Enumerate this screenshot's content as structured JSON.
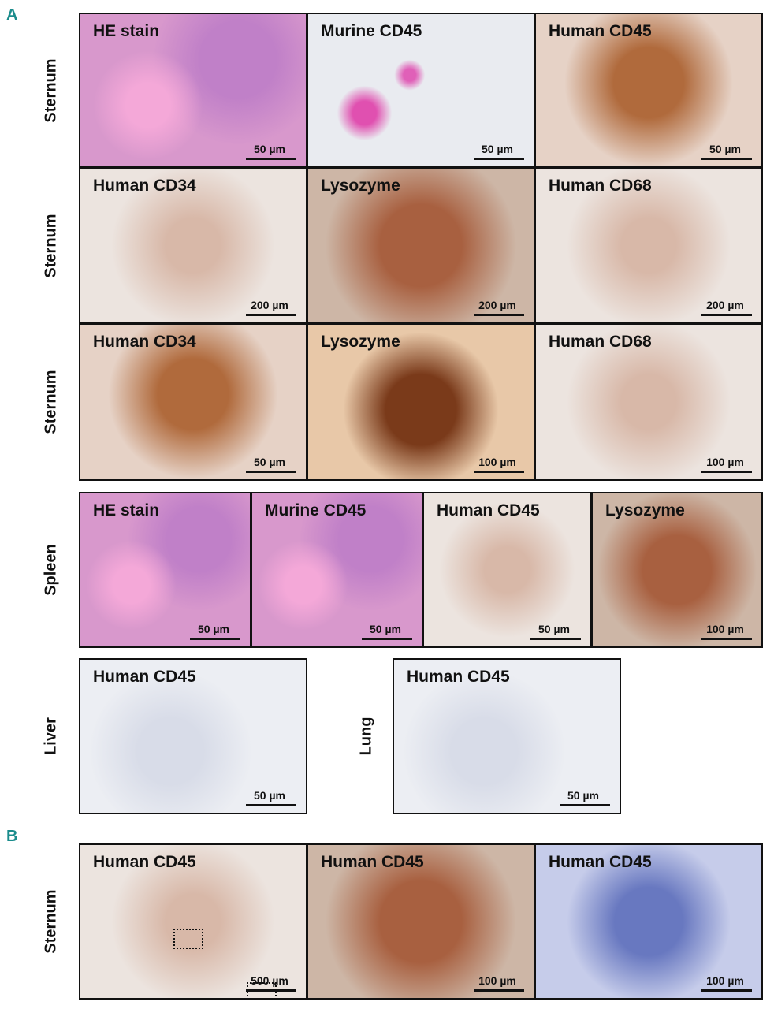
{
  "panel_a": {
    "label": "A",
    "rows": [
      {
        "label": "Sternum",
        "images": [
          {
            "title": "HE stain",
            "scale": "50 µm"
          },
          {
            "title": "Murine CD45",
            "scale": "50 µm"
          },
          {
            "title": "Human CD45",
            "scale": "50 µm"
          }
        ]
      },
      {
        "label": "Sternum",
        "images": [
          {
            "title": "Human CD34",
            "scale": "200 µm"
          },
          {
            "title": "Lysozyme",
            "scale": "200 µm"
          },
          {
            "title": "Human CD68",
            "scale": "200 µm"
          }
        ]
      },
      {
        "label": "Sternum",
        "images": [
          {
            "title": "Human CD34",
            "scale": "50 µm"
          },
          {
            "title": "Lysozyme",
            "scale": "100 µm"
          },
          {
            "title": "Human CD68",
            "scale": "100 µm"
          }
        ]
      },
      {
        "label": "Spleen",
        "images": [
          {
            "title": "HE stain",
            "scale": "50 µm"
          },
          {
            "title": "Murine CD45",
            "scale": "50 µm"
          },
          {
            "title": "Human CD45",
            "scale": "50 µm"
          },
          {
            "title": "Lysozyme",
            "scale": "100 µm"
          }
        ]
      },
      {
        "label": "Liver",
        "images": [
          {
            "title": "Human CD45",
            "scale": "50 µm"
          }
        ]
      },
      {
        "label": "Lung",
        "images": [
          {
            "title": "Human CD45",
            "scale": "50 µm"
          }
        ]
      }
    ]
  },
  "panel_b": {
    "label": "B",
    "rows": [
      {
        "label": "Sternum",
        "images": [
          {
            "title": "Human CD45",
            "scale": "500 µm"
          },
          {
            "title": "Human CD45",
            "scale": "100 µm"
          },
          {
            "title": "Human CD45",
            "scale": "100 µm"
          }
        ]
      }
    ]
  }
}
